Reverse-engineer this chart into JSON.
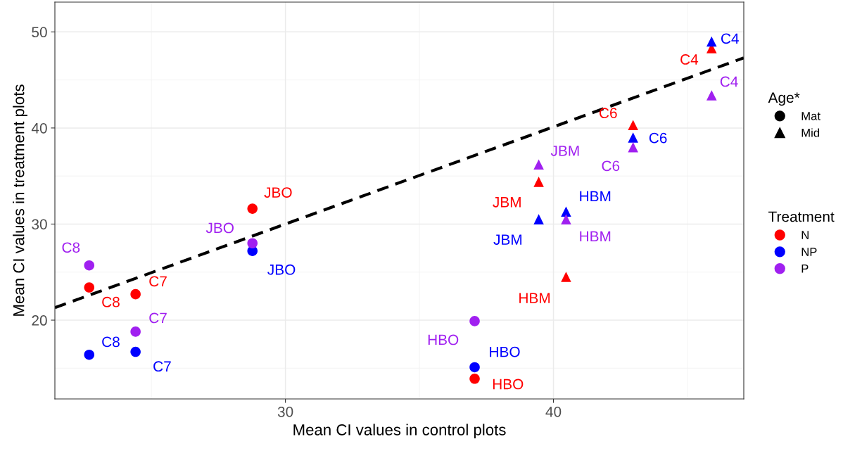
{
  "chart_data": {
    "type": "scatter",
    "xlabel": "Mean CI values in control plots",
    "ylabel": "Mean CI values in treatment plots",
    "xlim": [
      21.4,
      47.1
    ],
    "ylim": [
      11.8,
      53.1
    ],
    "xticks": [
      30,
      40
    ],
    "yticks": [
      20,
      30,
      40,
      50
    ],
    "grid": true,
    "legend": "right",
    "legend_title": "Treatment",
    "series": [
      {
        "name": "N",
        "marker": "circle",
        "color": "#ff0000",
        "x": [
          22.68,
          24.41,
          28.77,
          37.06
        ],
        "values": [
          23.4,
          22.7,
          31.6,
          13.9
        ]
      },
      {
        "name": "NP",
        "marker": "circle",
        "color": "#0000ff",
        "x": [
          22.68,
          24.41,
          28.77,
          37.06
        ],
        "values": [
          16.4,
          16.7,
          27.2,
          15.1
        ]
      },
      {
        "name": "P",
        "marker": "circle",
        "color": "#a020f0",
        "x": [
          22.68,
          24.41,
          28.77,
          37.06
        ],
        "values": [
          25.7,
          18.8,
          28.0,
          19.9
        ]
      },
      {
        "marker": "triangle",
        "color": "#ff0000",
        "x": [
          45.9,
          42.97,
          39.45,
          40.47
        ],
        "values": [
          48.3,
          40.3,
          34.4,
          24.5
        ]
      },
      {
        "marker": "triangle",
        "color": "#0000ff",
        "x": [
          45.9,
          42.97,
          39.45,
          40.47
        ],
        "values": [
          49.0,
          39.0,
          30.5,
          31.3
        ]
      },
      {
        "marker": "triangle",
        "color": "#a020f0",
        "x": [
          45.9,
          42.97,
          39.45,
          40.47
        ],
        "values": [
          43.4,
          38.0,
          36.2,
          30.5
        ]
      },
      {
        "type": "line",
        "line_style": "dashed",
        "color": "#000000",
        "x": [
          21.4,
          47.1
        ],
        "values": [
          21.3,
          47.3
        ]
      }
    ],
    "annotations": [
      "Age*",
      "Mat",
      "Mid",
      {
        "text": "C8",
        "x": 22.68,
        "y": 23.4
      },
      {
        "text": "C7",
        "x": 24.41,
        "y": 22.7
      },
      {
        "text": "JBO",
        "x": 28.77,
        "y": 31.6
      },
      {
        "text": "HBO",
        "x": 37.06,
        "y": 13.9
      },
      {
        "text": "C8",
        "x": 22.68,
        "y": 16.4
      },
      {
        "text": "C7",
        "x": 24.41,
        "y": 16.7
      },
      {
        "text": "JBO",
        "x": 28.77,
        "y": 27.2
      },
      {
        "text": "HBO",
        "x": 37.06,
        "y": 15.1
      },
      {
        "text": "C8",
        "x": 22.68,
        "y": 25.7
      },
      {
        "text": "C7",
        "x": 24.41,
        "y": 18.8
      },
      {
        "text": "JBO",
        "x": 28.77,
        "y": 28.0
      },
      {
        "text": "HBO",
        "x": 37.06,
        "y": 19.9
      },
      {
        "text": "C4",
        "x": 45.9,
        "y": 48.3
      },
      {
        "text": "C6",
        "x": 42.97,
        "y": 40.3
      },
      {
        "text": "JBM",
        "x": 39.45,
        "y": 34.4
      },
      {
        "text": "HBM",
        "x": 40.47,
        "y": 24.5
      },
      {
        "text": "C4",
        "x": 45.9,
        "y": 49.0
      },
      {
        "text": "C6",
        "x": 42.97,
        "y": 39.0
      },
      {
        "text": "JBM",
        "x": 39.45,
        "y": 30.5
      },
      {
        "text": "HBM",
        "x": 40.47,
        "y": 31.3
      },
      {
        "text": "C4",
        "x": 45.9,
        "y": 43.4
      },
      {
        "text": "C6",
        "x": 42.97,
        "y": 38.0
      },
      {
        "text": "JBM",
        "x": 39.45,
        "y": 36.2
      },
      {
        "text": "HBM",
        "x": 40.47,
        "y": 30.5
      }
    ]
  }
}
